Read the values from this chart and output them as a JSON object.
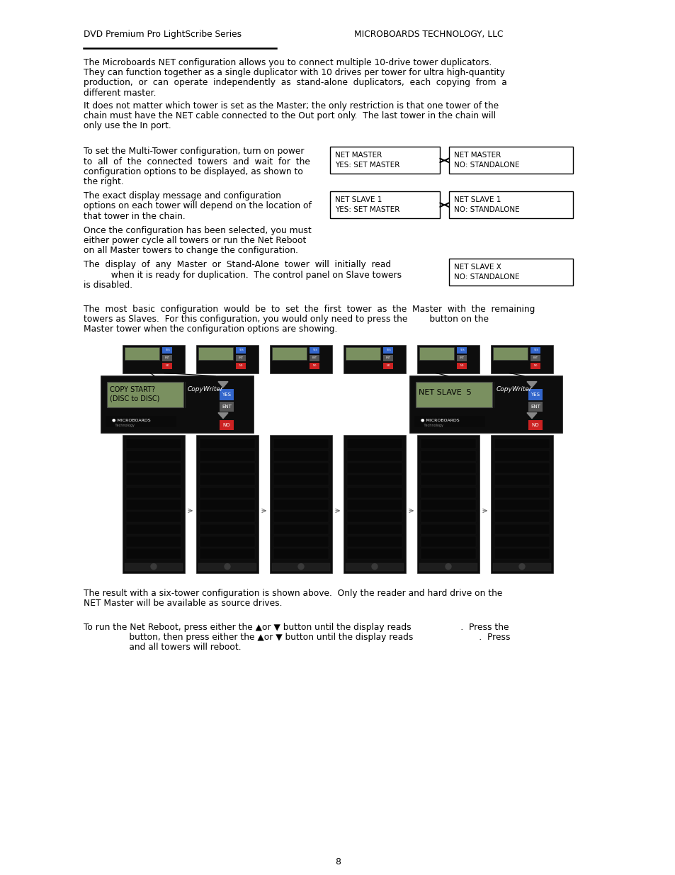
{
  "header_left": "DVD Premium Pro LightScribe Series",
  "header_right": "MICROBOARDS TECHNOLOGY, LLC",
  "para1": "The Microboards NET configuration allows you to connect multiple 10-drive tower duplicators.\nThey can function together as a single duplicator with 10 drives per tower for ultra high-quantity\nproduction,  or  can  operate  independently  as  stand-alone  duplicators,  each  copying  from  a\ndifferent master.",
  "para2": "It does not matter which tower is set as the Master; the only restriction is that one tower of the\nchain must have the NET cable connected to the Out port only.  The last tower in the chain will\nonly use the In port.",
  "para3_line1": "To set the Multi-Tower configuration, turn on power",
  "para3_line2": "to  all  of  the  connected  towers  and  wait  for  the",
  "para3_line3": "configuration options to be displayed, as shown to",
  "para3_line4": "the right.",
  "para4_line1": "The exact display message and configuration",
  "para4_line2": "options on each tower will depend on the location of",
  "para4_line3": "that tower in the chain.",
  "para5_line1": "Once the configuration has been selected, you must",
  "para5_line2": "either power cycle all towers or run the Net Reboot",
  "para5_line3": "on all Master towers to change the configuration.",
  "para6": "The  display  of  any  Master  or  Stand-Alone  tower  will  initially  read",
  "para6b": "          when it is ready for duplication.  The control panel on Slave towers",
  "para6c": "is disabled.",
  "para7_line1": "The  most  basic  configuration  would  be  to  set  the  first  tower  as  the  Master  with  the  remaining",
  "para7_line2": "towers as Slaves.  For this configuration, you would only need to press the        button on the",
  "para7_line3": "Master tower when the configuration options are showing.",
  "para8_line1": "The result with a six-tower configuration is shown above.  Only the reader and hard drive on the",
  "para8_line2": "NET Master will be available as source drives.",
  "para9_line1": "To run the Net Reboot, press either the ▲or ▼ button until the display reads                  .  Press the",
  "para9_line2": "     button, then press either the ▲or ▼ button until the display reads                        .  Press",
  "para9_line3": "     and all towers will reboot.",
  "box1_line1": "NET MASTER",
  "box1_line2": "YES: SET MASTER",
  "box2_line1": "NET MASTER",
  "box2_line2": "NO: STANDALONE",
  "box3_line1": "NET SLAVE 1",
  "box3_line2": "YES: SET MASTER",
  "box4_line1": "NET SLAVE 1",
  "box4_line2": "NO: STANDALONE",
  "box5_line1": "NET SLAVE X",
  "box5_line2": "NO: STANDALONE",
  "page_number": "8",
  "bg_color": "#ffffff",
  "text_color": "#000000"
}
